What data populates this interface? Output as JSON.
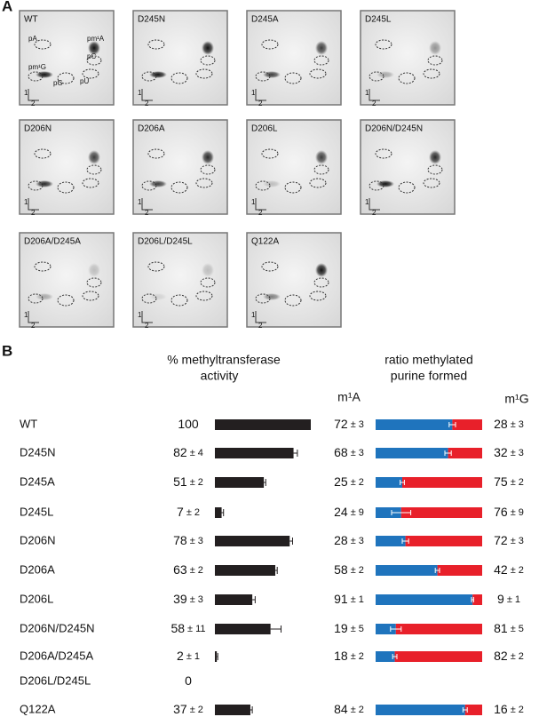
{
  "panel_a": {
    "label": "A",
    "axis_1": "1",
    "axis_2": "2",
    "panels": [
      "WT",
      "D245N",
      "D245A",
      "D245L",
      "D206N",
      "D206A",
      "D206L",
      "D206N/D245N",
      "D206A/D245A",
      "D206L/D245L",
      "Q122A"
    ],
    "wt_spot_labels": [
      "pA",
      "pm¹A",
      "pC",
      "pm¹G",
      "pG",
      "pU"
    ]
  },
  "panel_b": {
    "label": "B",
    "pm_sign": "±",
    "activity_header": [
      "%  methyltransferase",
      "activity"
    ],
    "ratio_header": [
      "ratio methylated",
      "purine formed"
    ],
    "m1a_label": "m¹A",
    "m1g_label": "m¹G",
    "rows": [
      {
        "name": "WT",
        "activity": 100,
        "activity_err": null,
        "m1a": 72,
        "m1a_err": 3,
        "m1g": 28,
        "m1g_err": 3
      },
      {
        "name": "D245N",
        "activity": 82,
        "activity_err": 4,
        "m1a": 68,
        "m1a_err": 3,
        "m1g": 32,
        "m1g_err": 3
      },
      {
        "name": "D245A",
        "activity": 51,
        "activity_err": 2,
        "m1a": 25,
        "m1a_err": 2,
        "m1g": 75,
        "m1g_err": 2
      },
      {
        "name": "D245L",
        "activity": 7,
        "activity_err": 2,
        "m1a": 24,
        "m1a_err": 9,
        "m1g": 76,
        "m1g_err": 9
      },
      {
        "name": "D206N",
        "activity": 78,
        "activity_err": 3,
        "m1a": 28,
        "m1a_err": 3,
        "m1g": 72,
        "m1g_err": 3
      },
      {
        "name": "D206A",
        "activity": 63,
        "activity_err": 2,
        "m1a": 58,
        "m1a_err": 2,
        "m1g": 42,
        "m1g_err": 2
      },
      {
        "name": "D206L",
        "activity": 39,
        "activity_err": 3,
        "m1a": 91,
        "m1a_err": 1,
        "m1g": 9,
        "m1g_err": 1
      },
      {
        "name": "D206N/D245N",
        "activity": 58,
        "activity_err": 11,
        "m1a": 19,
        "m1a_err": 5,
        "m1g": 81,
        "m1g_err": 5
      },
      {
        "name": "D206A/D245A",
        "activity": 2,
        "activity_err": 1,
        "m1a": 18,
        "m1a_err": 2,
        "m1g": 82,
        "m1g_err": 2
      },
      {
        "name": "D206L/D245L",
        "activity": 0,
        "activity_err": null,
        "m1a": null,
        "m1a_err": null,
        "m1g": null,
        "m1g_err": null
      },
      {
        "name": "Q122A",
        "activity": 37,
        "activity_err": 2,
        "m1a": 84,
        "m1a_err": 2,
        "m1g": 16,
        "m1g_err": 2
      }
    ]
  }
}
